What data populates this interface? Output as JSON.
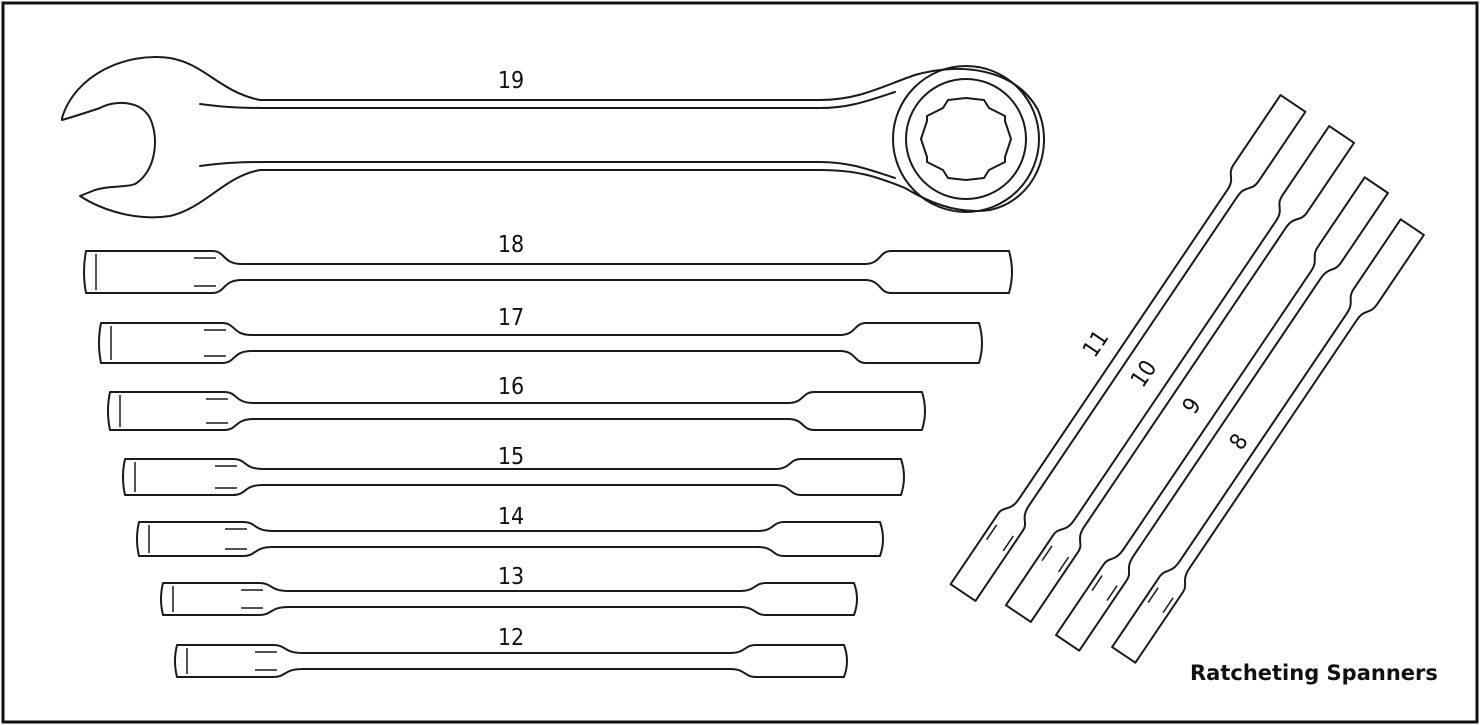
{
  "caption": "Ratcheting Spanners",
  "colors": {
    "outline": "#1a1a1a",
    "background": "#ffffff"
  },
  "large_spanner": {
    "label": "19"
  },
  "horizontal_spanners": [
    {
      "label": "18"
    },
    {
      "label": "17"
    },
    {
      "label": "16"
    },
    {
      "label": "15"
    },
    {
      "label": "14"
    },
    {
      "label": "13"
    },
    {
      "label": "12"
    }
  ],
  "diagonal_spanners": [
    {
      "label": "11"
    },
    {
      "label": "10"
    },
    {
      "label": "9"
    },
    {
      "label": "8"
    }
  ]
}
